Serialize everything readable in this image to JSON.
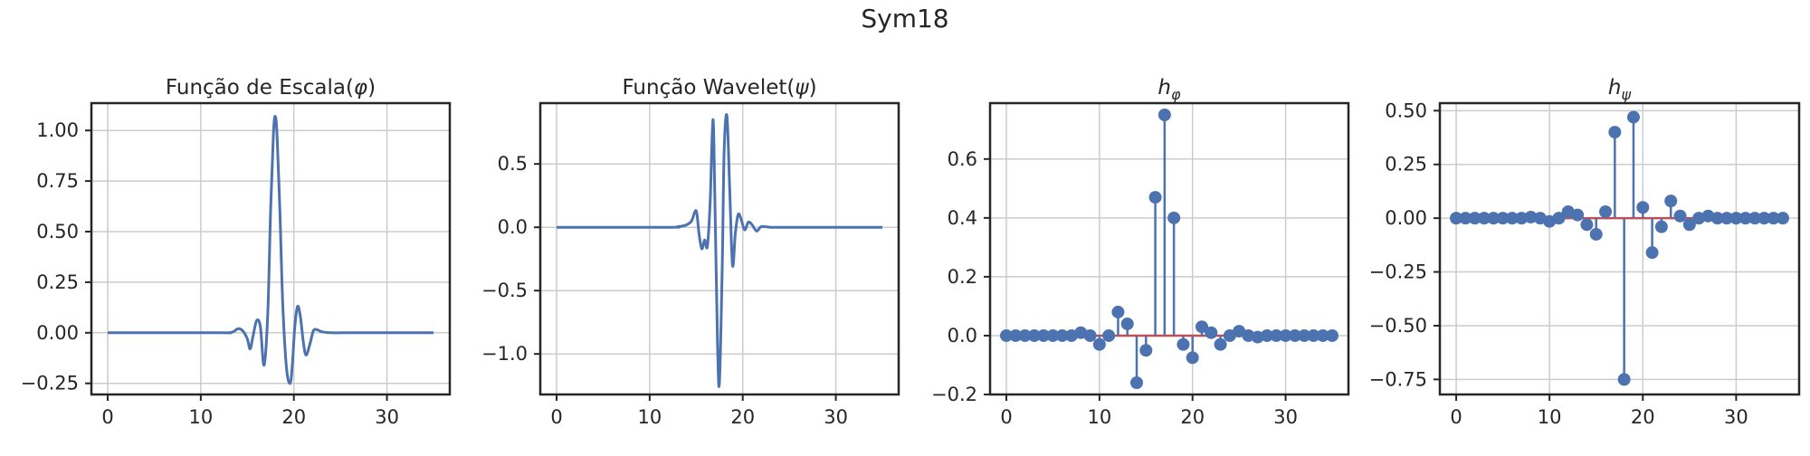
{
  "figure": {
    "suptitle": "Sym18"
  },
  "colors": {
    "line": "#4c72b0",
    "baseline": "#c44e52",
    "grid": "#cccccc",
    "frame": "#262626",
    "text": "#262626"
  },
  "chart_data": [
    {
      "type": "line",
      "title": "Função de Escala(φ)",
      "title_html": "Função de Escala(<tspan font-style='italic'>φ</tspan>)",
      "xlim": [
        -1.75,
        36.75
      ],
      "ylim": [
        -0.305,
        1.135
      ],
      "xticks": [
        0,
        10,
        20,
        30
      ],
      "yticks": [
        -0.25,
        0,
        0.25,
        0.5,
        0.75,
        1.0
      ],
      "ytick_labels": [
        "−0.25",
        "0.00",
        "0.25",
        "0.50",
        "0.75",
        "1.00"
      ],
      "grid": true,
      "series": [
        {
          "x": [
            0,
            12,
            13,
            13.5,
            14,
            14.5,
            15,
            15.3,
            15.6,
            16,
            16.4,
            16.8,
            17.2,
            17.5,
            17.8,
            18.0,
            18.2,
            18.5,
            18.8,
            19.2,
            19.6,
            19.85,
            20.1,
            20.4,
            20.7,
            21.0,
            21.3,
            21.7,
            22.1,
            22.5,
            23,
            24,
            26,
            35
          ],
          "y": [
            0,
            0,
            0,
            0.005,
            0.02,
            0.01,
            -0.03,
            -0.08,
            -0.02,
            0.06,
            0.03,
            -0.16,
            0.1,
            0.6,
            0.98,
            1.07,
            0.97,
            0.6,
            0.15,
            -0.17,
            -0.25,
            -0.15,
            0.03,
            0.13,
            0.08,
            -0.04,
            -0.11,
            -0.06,
            0.01,
            0.015,
            0.005,
            0,
            0,
            0
          ]
        }
      ]
    },
    {
      "type": "line",
      "title": "Função Wavelet(ψ)",
      "title_html": "Função Wavelet(<tspan font-style='italic'>ψ</tspan>)",
      "xlim": [
        -1.75,
        36.75
      ],
      "ylim": [
        -1.32,
        0.98
      ],
      "xticks": [
        0,
        10,
        20,
        30
      ],
      "yticks": [
        -1.0,
        -0.5,
        0,
        0.5
      ],
      "ytick_labels": [
        "−1.0",
        "−0.5",
        "0.0",
        "0.5"
      ],
      "grid": true,
      "series": [
        {
          "x": [
            0,
            12,
            13,
            13.5,
            14,
            14.5,
            15,
            15.3,
            15.6,
            15.9,
            16.2,
            16.5,
            16.8,
            17.0,
            17.3,
            17.5,
            17.8,
            18.0,
            18.3,
            18.6,
            18.9,
            19.2,
            19.5,
            19.8,
            20.2,
            20.6,
            21.0,
            21.5,
            22,
            23,
            24,
            26,
            35
          ],
          "y": [
            0,
            0,
            0.005,
            0.01,
            0.02,
            0.05,
            0.13,
            -0.05,
            -0.17,
            -0.1,
            -0.15,
            0.2,
            0.85,
            0.25,
            -0.95,
            -1.22,
            -0.3,
            0.6,
            0.88,
            0.3,
            -0.3,
            -0.05,
            0.1,
            0.07,
            -0.02,
            0.04,
            0.02,
            -0.03,
            0.005,
            0,
            0,
            0,
            0
          ]
        }
      ]
    },
    {
      "type": "stem",
      "title": "hφ",
      "title_main": "h",
      "title_sub": "φ",
      "xlim": [
        -1.75,
        36.75
      ],
      "ylim": [
        -0.2,
        0.79
      ],
      "xticks": [
        0,
        10,
        20,
        30
      ],
      "yticks": [
        -0.2,
        0,
        0.2,
        0.4,
        0.6
      ],
      "ytick_labels": [
        "−0.2",
        "0.0",
        "0.2",
        "0.4",
        "0.6"
      ],
      "grid": true,
      "x": [
        0,
        1,
        2,
        3,
        4,
        5,
        6,
        7,
        8,
        9,
        10,
        11,
        12,
        13,
        14,
        15,
        16,
        17,
        18,
        19,
        20,
        21,
        22,
        23,
        24,
        25,
        26,
        27,
        28,
        29,
        30,
        31,
        32,
        33,
        34,
        35
      ],
      "values": [
        0,
        0,
        0,
        0,
        0,
        0,
        0,
        0,
        0.01,
        0,
        -0.03,
        0,
        0.08,
        0.04,
        -0.16,
        -0.05,
        0.47,
        0.75,
        0.4,
        -0.03,
        -0.075,
        0.03,
        0.01,
        -0.03,
        0,
        0.015,
        0,
        -0.005,
        0,
        0,
        0,
        0,
        0,
        0,
        0,
        0
      ]
    },
    {
      "type": "stem",
      "title": "hψ",
      "title_main": "h",
      "title_sub": "ψ",
      "xlim": [
        -1.75,
        36.75
      ],
      "ylim": [
        -0.82,
        0.535
      ],
      "xticks": [
        0,
        10,
        20,
        30
      ],
      "yticks": [
        -0.75,
        -0.5,
        -0.25,
        0,
        0.25,
        0.5
      ],
      "ytick_labels": [
        "−0.75",
        "−0.50",
        "−0.25",
        "0.00",
        "0.25",
        "0.50"
      ],
      "grid": true,
      "x": [
        0,
        1,
        2,
        3,
        4,
        5,
        6,
        7,
        8,
        9,
        10,
        11,
        12,
        13,
        14,
        15,
        16,
        17,
        18,
        19,
        20,
        21,
        22,
        23,
        24,
        25,
        26,
        27,
        28,
        29,
        30,
        31,
        32,
        33,
        34,
        35
      ],
      "values": [
        0,
        0,
        0,
        0,
        0,
        0,
        0,
        0,
        0.005,
        0,
        -0.015,
        0,
        0.03,
        0.015,
        -0.03,
        -0.075,
        0.03,
        0.4,
        -0.75,
        0.47,
        0.05,
        -0.16,
        -0.04,
        0.08,
        0.01,
        -0.03,
        0,
        0.01,
        0,
        0,
        0,
        0,
        0,
        0,
        0,
        0
      ]
    }
  ]
}
